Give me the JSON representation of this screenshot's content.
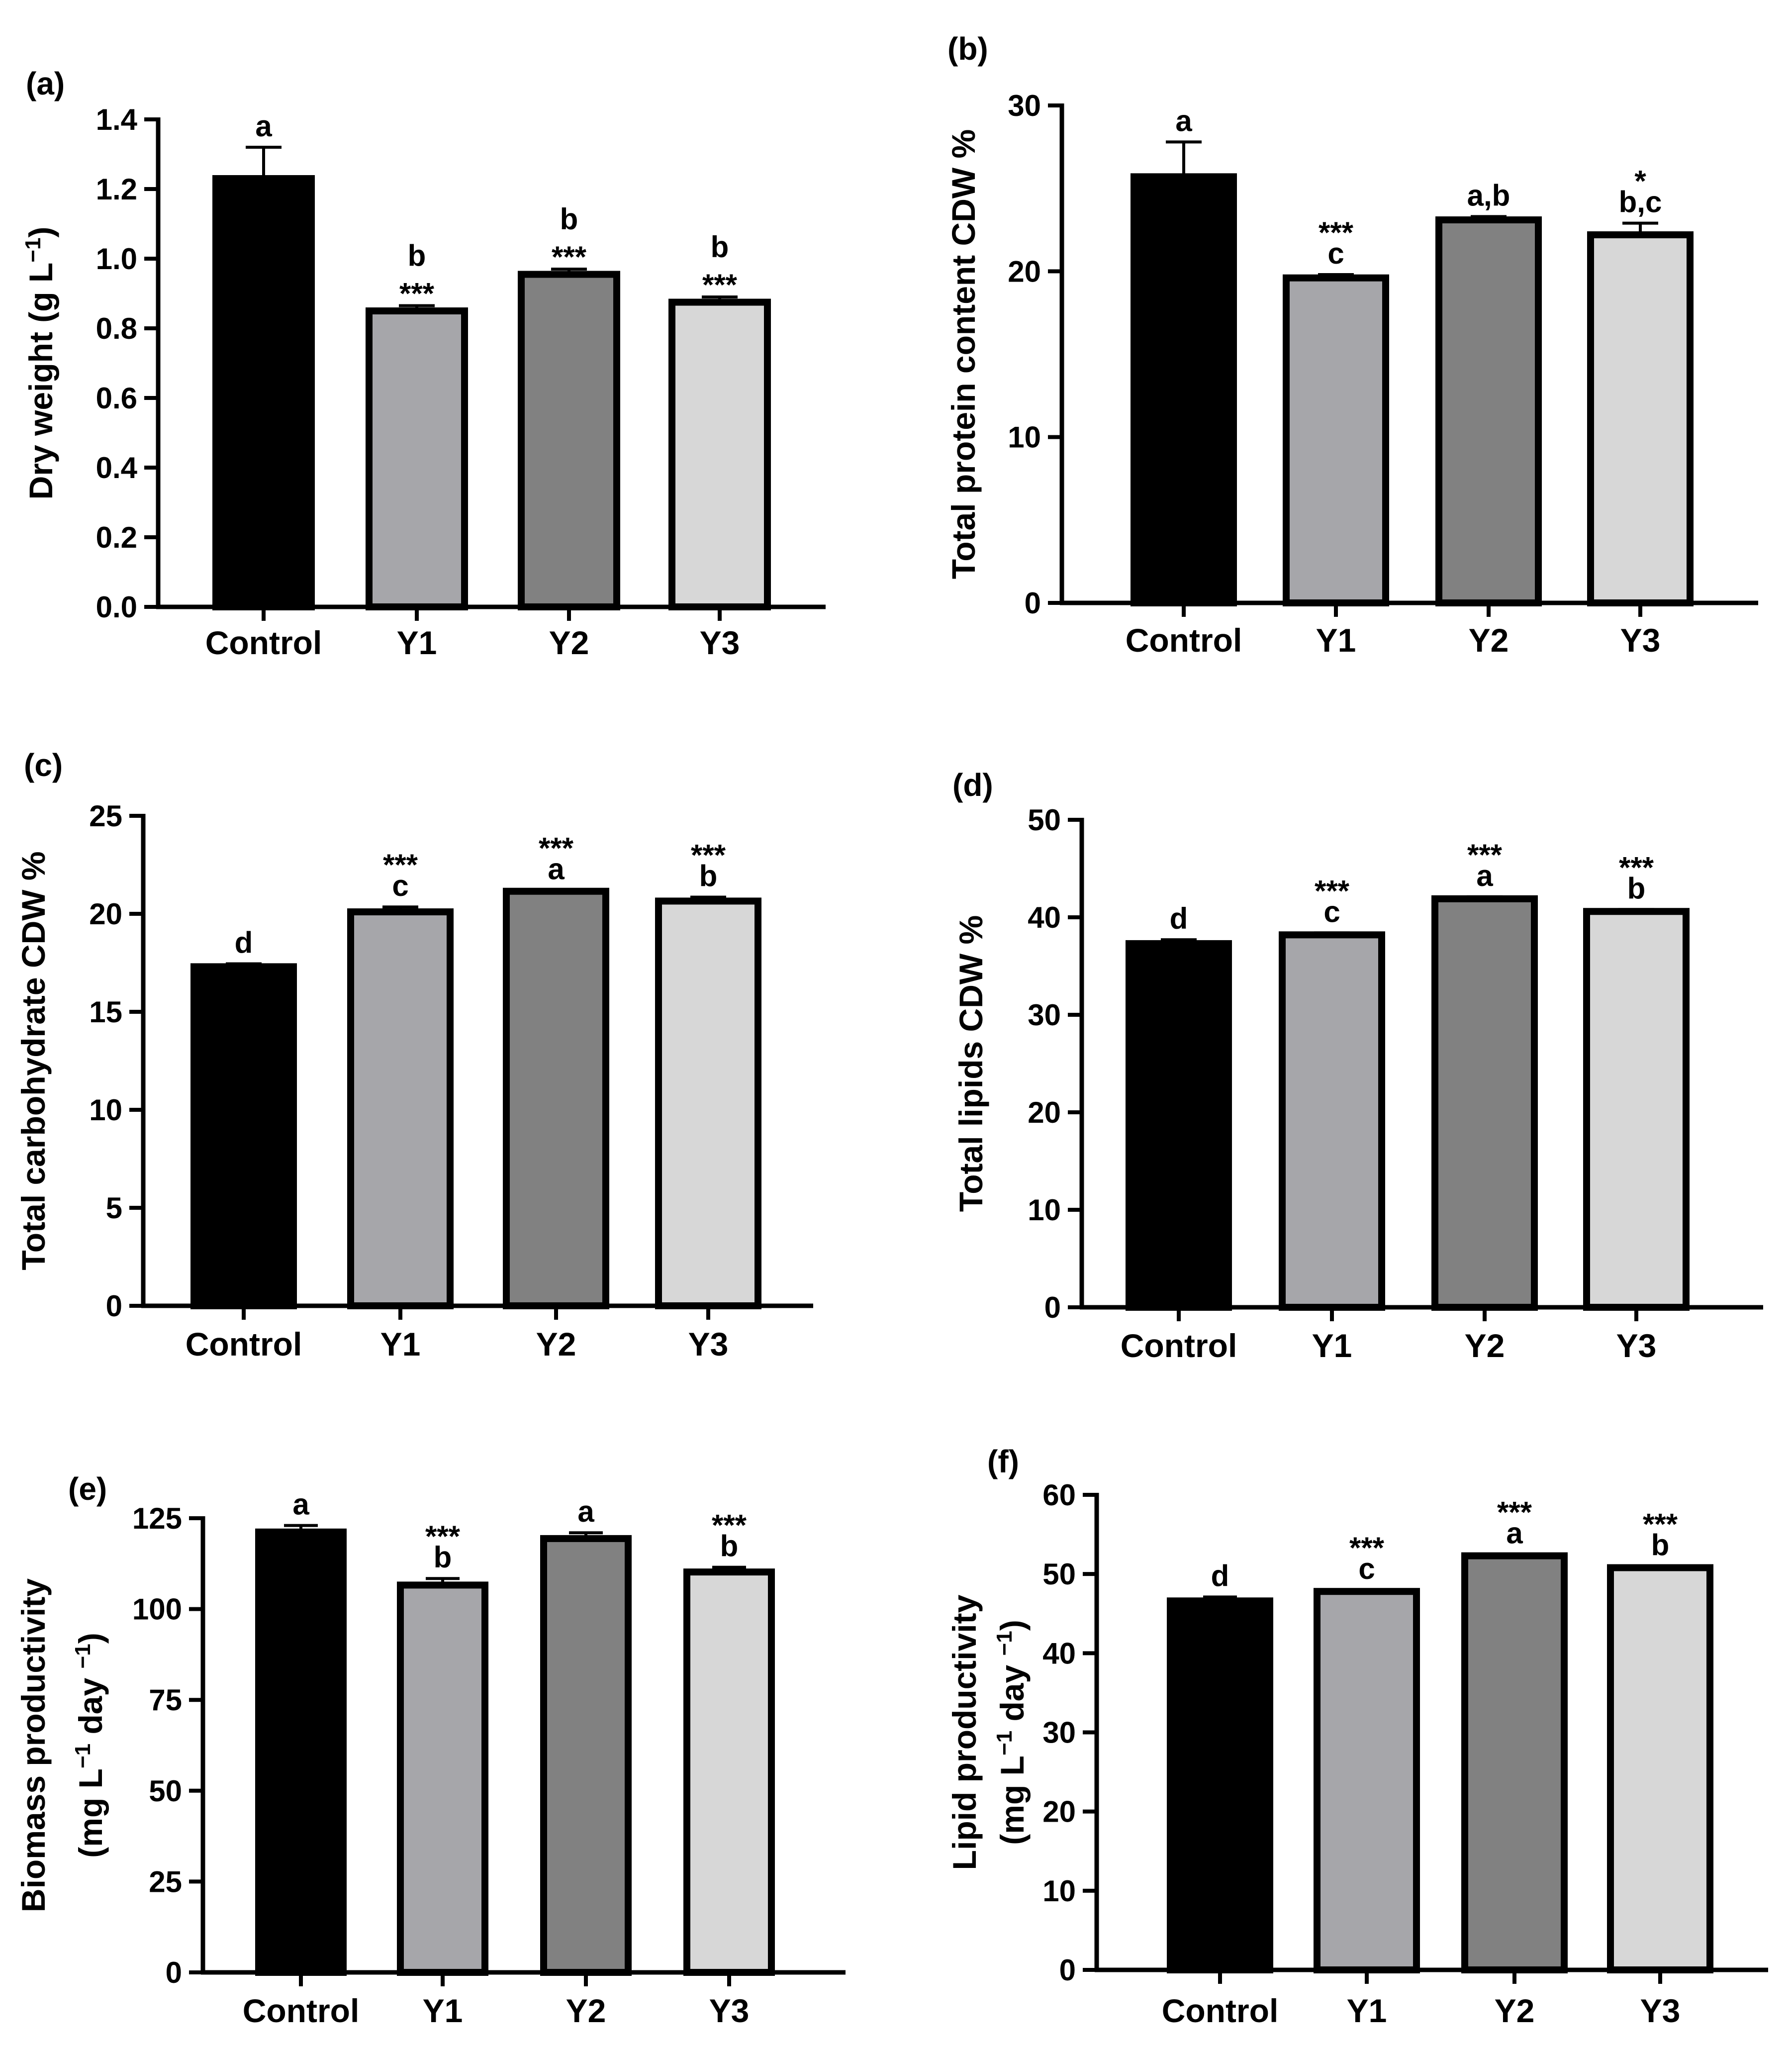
{
  "chart_data": [
    {
      "panel": "(a)",
      "type": "bar",
      "categories": [
        "Control",
        "Y1",
        "Y2",
        "Y3"
      ],
      "values": [
        1.23,
        0.85,
        0.955,
        0.875
      ],
      "errors": [
        0.09,
        0.015,
        0.015,
        0.015
      ],
      "letters": [
        "a",
        "b",
        "b",
        "b"
      ],
      "stars": [
        "",
        "***",
        "***",
        "***"
      ],
      "order": "letter_top",
      "ylabel": "Dry weight (g L",
      "ylabel_sup": "−1",
      "ylabel_end": ")",
      "ylabel2": "",
      "ylim": [
        0,
        1.4
      ],
      "yticks": [
        0.0,
        0.2,
        0.4,
        0.6,
        0.8,
        1.0,
        1.2,
        1.4
      ],
      "ytick_labels": [
        "0.0",
        "0.2",
        "0.4",
        "0.6",
        "0.8",
        "1.0",
        "1.2",
        "1.4"
      ],
      "colors": [
        "#000000",
        "#a6a6aa",
        "#818181",
        "#d7d7d7"
      ]
    },
    {
      "panel": "(b)",
      "type": "bar",
      "categories": [
        "Control",
        "Y1",
        "Y2",
        "Y3"
      ],
      "values": [
        25.7,
        19.6,
        23.1,
        22.2
      ],
      "errors": [
        2.1,
        0.2,
        0.2,
        0.7
      ],
      "letters": [
        "a",
        "c",
        "a,b",
        "b,c"
      ],
      "stars": [
        "",
        "***",
        "",
        "*"
      ],
      "order": "star_top",
      "ylabel": "Total protein content CDW %",
      "ylabel_sup": "",
      "ylabel_end": "",
      "ylabel2": "",
      "ylim": [
        0,
        30
      ],
      "yticks": [
        0,
        10,
        20,
        30
      ],
      "ytick_labels": [
        "0",
        "10",
        "20",
        "30"
      ],
      "colors": [
        "#000000",
        "#a6a6aa",
        "#818181",
        "#d7d7d7"
      ]
    },
    {
      "panel": "(c)",
      "type": "bar",
      "categories": [
        "Control",
        "Y1",
        "Y2",
        "Y3"
      ],
      "values": [
        17.3,
        20.1,
        21.15,
        20.65
      ],
      "errors": [
        0.15,
        0.25,
        0.05,
        0.2
      ],
      "letters": [
        "d",
        "c",
        "a",
        "b"
      ],
      "stars": [
        "",
        "***",
        "***",
        "***"
      ],
      "order": "star_top",
      "ylabel": "Total carbohydrate CDW %",
      "ylabel_sup": "",
      "ylabel_end": "",
      "ylabel2": "",
      "ylim": [
        0,
        25
      ],
      "yticks": [
        0,
        5,
        10,
        15,
        20,
        25
      ],
      "ytick_labels": [
        "0",
        "5",
        "10",
        "15",
        "20",
        "25"
      ],
      "colors": [
        "#000000",
        "#a6a6aa",
        "#818181",
        "#d7d7d7"
      ]
    },
    {
      "panel": "(d)",
      "type": "bar",
      "categories": [
        "Control",
        "Y1",
        "Y2",
        "Y3"
      ],
      "values": [
        37.3,
        38.2,
        41.9,
        40.6
      ],
      "errors": [
        0.4,
        0.2,
        0.2,
        0.2
      ],
      "letters": [
        "d",
        "c",
        "a",
        "b"
      ],
      "stars": [
        "",
        "***",
        "***",
        "***"
      ],
      "order": "star_top",
      "ylabel": "Total lipids CDW %",
      "ylabel_sup": "",
      "ylabel_end": "",
      "ylabel2": "",
      "ylim": [
        0,
        50
      ],
      "yticks": [
        0,
        10,
        20,
        30,
        40,
        50
      ],
      "ytick_labels": [
        "0",
        "10",
        "20",
        "30",
        "40",
        "50"
      ],
      "colors": [
        "#000000",
        "#a6a6aa",
        "#818181",
        "#d7d7d7"
      ]
    },
    {
      "panel": "(e)",
      "type": "bar",
      "categories": [
        "Control",
        "Y1",
        "Y2",
        "Y3"
      ],
      "values": [
        121.2,
        106.6,
        119.4,
        110.2
      ],
      "errors": [
        1.8,
        1.8,
        1.6,
        1.3
      ],
      "letters": [
        "a",
        "b",
        "a",
        "b"
      ],
      "stars": [
        "",
        "***",
        "",
        "***"
      ],
      "order": "star_top",
      "ylabel": "Biomass productivity",
      "ylabel_sup": "",
      "ylabel_end": "",
      "ylabel2": "(mg L",
      "ylabel2_sup1": "−1",
      "ylabel2_mid": " day ",
      "ylabel2_sup2": "−1",
      "ylabel2_end": ")",
      "ylim": [
        0,
        125
      ],
      "yticks": [
        0,
        25,
        50,
        75,
        100,
        125
      ],
      "ytick_labels": [
        "0",
        "25",
        "50",
        "75",
        "100",
        "125"
      ],
      "colors": [
        "#000000",
        "#a6a6aa",
        "#818181",
        "#d7d7d7"
      ]
    },
    {
      "panel": "(f)",
      "type": "bar",
      "categories": [
        "Control",
        "Y1",
        "Y2",
        "Y3"
      ],
      "values": [
        46.6,
        47.8,
        52.3,
        50.8
      ],
      "errors": [
        0.5,
        0.2,
        0.2,
        0.2
      ],
      "letters": [
        "d",
        "c",
        "a",
        "b"
      ],
      "stars": [
        "",
        "***",
        "***",
        "***"
      ],
      "order": "star_top",
      "ylabel": "Lipid productivity",
      "ylabel_sup": "",
      "ylabel_end": "",
      "ylabel2": "(mg L",
      "ylabel2_sup1": "−1",
      "ylabel2_mid": " day ",
      "ylabel2_sup2": "−1",
      "ylabel2_end": ")",
      "ylim": [
        0,
        60
      ],
      "yticks": [
        0,
        10,
        20,
        30,
        40,
        50,
        60
      ],
      "ytick_labels": [
        "0",
        "10",
        "20",
        "30",
        "40",
        "50",
        "60"
      ],
      "colors": [
        "#000000",
        "#a6a6aa",
        "#818181",
        "#d7d7d7"
      ]
    }
  ]
}
